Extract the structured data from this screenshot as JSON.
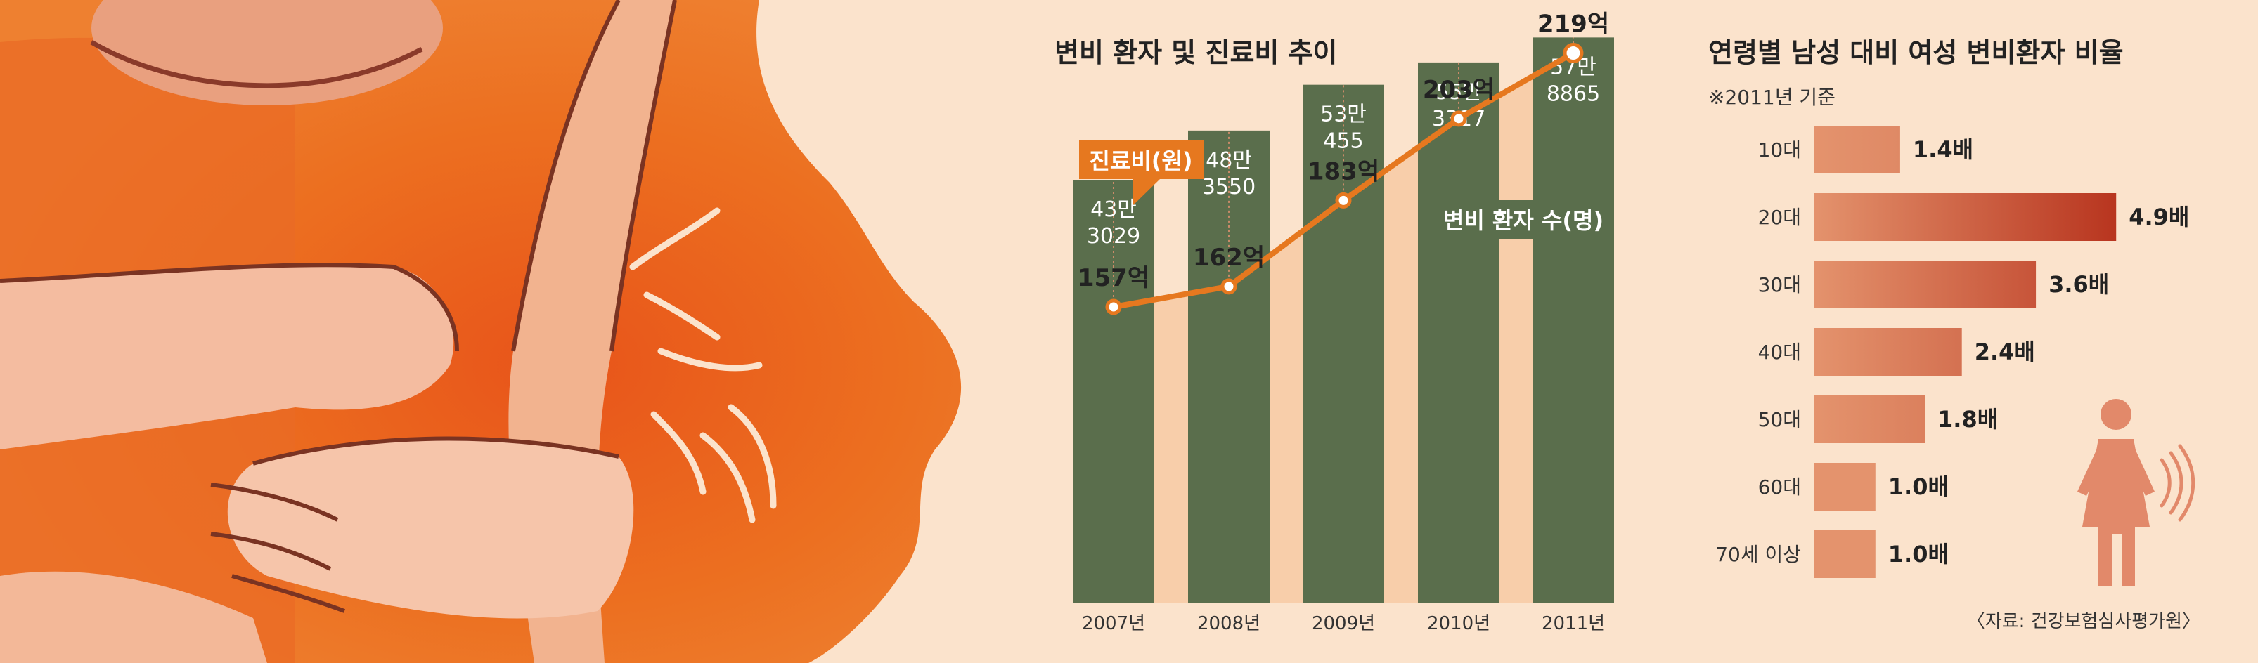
{
  "chart_data": [
    {
      "type": "bar",
      "title": "변비 환자 및 진료비 추이",
      "categories": [
        "2007년",
        "2008년",
        "2009년",
        "2010년",
        "2011년"
      ],
      "series": [
        {
          "name": "변비 환자 수(명)",
          "values": [
            433029,
            483550,
            530455,
            553317,
            578865
          ],
          "labels": [
            [
              "43만",
              "3029"
            ],
            [
              "48만",
              "3550"
            ],
            [
              "53만",
              "455"
            ],
            [
              "55만",
              "3317"
            ],
            [
              "57만",
              "8865"
            ]
          ],
          "color": "#5a6e4c"
        },
        {
          "name": "진료비(원)",
          "type": "line",
          "values": [
            157,
            162,
            183,
            203,
            219
          ],
          "labels": [
            "157억",
            "162억",
            "183억",
            "203억",
            "219억"
          ],
          "color": "#e6781f"
        }
      ]
    },
    {
      "type": "bar",
      "title": "연령별 남성 대비 여성 변비환자 비율",
      "subtitle": "※2011년 기준",
      "categories": [
        "10대",
        "20대",
        "30대",
        "40대",
        "50대",
        "60대",
        "70세 이상"
      ],
      "values": [
        1.4,
        4.9,
        3.6,
        2.4,
        1.8,
        1.0,
        1.0
      ],
      "labels": [
        "1.4배",
        "4.9배",
        "3.6배",
        "2.4배",
        "1.8배",
        "1.0배",
        "1.0배"
      ],
      "source": "〈자료: 건강보험심사평가원〉"
    }
  ],
  "colors": {
    "background": "#fbe3cc",
    "bar_green": "#5a6e4c",
    "line_orange": "#e6781f",
    "area_fill": "#f7caa3",
    "ratio_light": "#e4936d",
    "ratio_dark": "#b8351f",
    "figure": "#e2896a"
  },
  "icons": [
    "woman-figure-icon",
    "abdominal-pain-illustration"
  ]
}
